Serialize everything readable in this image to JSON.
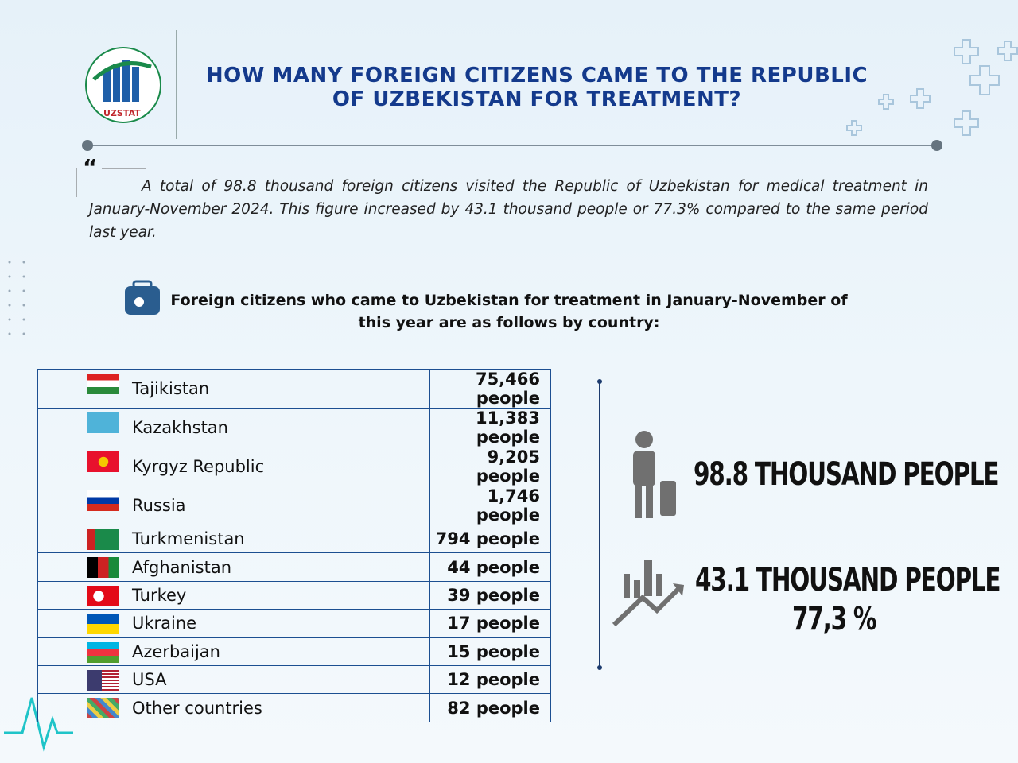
{
  "header": {
    "logo": "UZSTAT",
    "title": "HOW MANY FOREIGN CITIZENS CAME TO THE REPUBLIC OF UZBEKISTAN FOR TREATMENT?"
  },
  "intro": "A total of 98.8 thousand foreign citizens visited the Republic of Uzbekistan for medical treatment in January-November 2024. This figure increased by 43.1 thousand people or 77.3% compared to the same period last year.",
  "subtitle": "Foreign citizens who came to Uzbekistan for treatment in January-November of this year are as follows by country:",
  "table": {
    "rows": [
      [
        "Tajikistan",
        "75,466 people"
      ],
      [
        "Kazakhstan",
        "11,383 people"
      ],
      [
        "Kyrgyz Republic",
        "9,205 people"
      ],
      [
        "Russia",
        "1,746 people"
      ],
      [
        "Turkmenistan",
        "794 people"
      ],
      [
        "Afghanistan",
        "44 people"
      ],
      [
        "Turkey",
        "39 people"
      ],
      [
        "Ukraine",
        "17 people"
      ],
      [
        "Azerbaijan",
        "15 people"
      ],
      [
        "USA",
        "12 people"
      ],
      [
        "Other countries",
        "82 people"
      ]
    ]
  },
  "stats": {
    "total": "98.8 THOUSAND PEOPLE",
    "increase": "43.1 THOUSAND PEOPLE",
    "percent": "77,3 %"
  }
}
